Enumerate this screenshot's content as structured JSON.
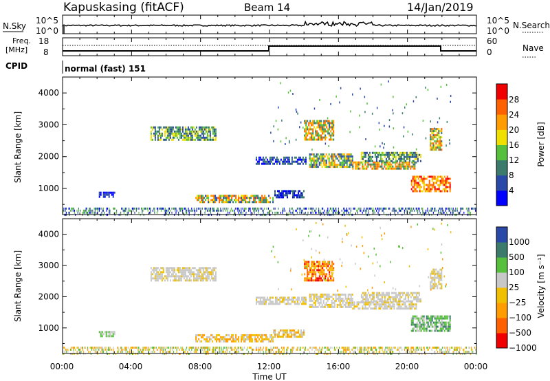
{
  "header": {
    "station": "Kapuskasing (fitACF)",
    "beam": "Beam 14",
    "date": "14/Jan/2019"
  },
  "noise_panel": {
    "left_label": "N.Sky",
    "left_ticks": [
      "10^5",
      "10^0"
    ],
    "right_ticks": [
      "10^5",
      "10^0"
    ],
    "right_label": "N.Search"
  },
  "freq_panel": {
    "left_label_line1": "Freq.",
    "left_label_line2": "[MHz]",
    "left_ticks": [
      "18",
      "8"
    ],
    "right_ticks": [
      "60",
      "0"
    ],
    "right_label": "Nave"
  },
  "cpid": {
    "label": "CPID",
    "value": "normal (fast) 151"
  },
  "x_axis": {
    "label": "Time UT",
    "ticks": [
      "00:00",
      "04:00",
      "08:00",
      "12:00",
      "16:00",
      "20:00",
      "00:00"
    ]
  },
  "colors": {
    "power_scale": [
      "#0000ff",
      "#2a48a8",
      "#3c7a6c",
      "#56c03c",
      "#f0e000",
      "#ff9c00",
      "#ff6000",
      "#f00000"
    ],
    "velocity_scale": [
      "#2a48a8",
      "#3c7a6c",
      "#56c03c",
      "#c8c8c8",
      "#f0c000",
      "#ff9c00",
      "#ff6000",
      "#f00000"
    ]
  },
  "power_colorbar": {
    "label": "Power [dB]",
    "ticks": [
      "28",
      "24",
      "20",
      "16",
      "12",
      "8",
      "4"
    ]
  },
  "velocity_colorbar": {
    "label": "Velocity [m s⁻¹]",
    "ticks": [
      "1000",
      "500",
      "100",
      "25",
      "−25",
      "−100",
      "−500",
      "−1000"
    ]
  },
  "chart_data": [
    {
      "type": "heatmap",
      "name": "power",
      "xlabel": "Time UT",
      "ylabel": "Slant Range [km]",
      "xlim_hours": [
        0,
        24
      ],
      "ylim_km": [
        180,
        4500
      ],
      "y_ticks": [
        1000,
        2000,
        3000,
        4000
      ],
      "colorbar": "Power [dB]",
      "regions": [
        {
          "t": [
            5.1,
            8.9
          ],
          "r": [
            2500,
            2950
          ],
          "level": "8-16"
        },
        {
          "t": [
            2.1,
            3.0
          ],
          "r": [
            750,
            900
          ],
          "level": "4-8"
        },
        {
          "t": [
            7.7,
            12.2
          ],
          "r": [
            600,
            800
          ],
          "level": "8-24"
        },
        {
          "t": [
            12.2,
            14.0
          ],
          "r": [
            700,
            950
          ],
          "level": "4-12"
        },
        {
          "t": [
            11.2,
            14.1
          ],
          "r": [
            1750,
            2000
          ],
          "level": "4-12"
        },
        {
          "t": [
            14.0,
            15.7
          ],
          "r": [
            2550,
            3150
          ],
          "level": "12-24"
        },
        {
          "t": [
            14.3,
            16.8
          ],
          "r": [
            1700,
            2100
          ],
          "level": "8-20"
        },
        {
          "t": [
            16.8,
            20.5
          ],
          "r": [
            1600,
            1850
          ],
          "level": "12-24"
        },
        {
          "t": [
            17.3,
            20.8
          ],
          "r": [
            1850,
            2150
          ],
          "level": "8-16"
        },
        {
          "t": [
            20.2,
            22.5
          ],
          "r": [
            900,
            1400
          ],
          "level": "16-28"
        },
        {
          "t": [
            21.3,
            22.0
          ],
          "r": [
            2250,
            2900
          ],
          "level": "12-24"
        },
        {
          "t": [
            0.0,
            24.0
          ],
          "r": [
            180,
            400
          ],
          "level": "4-16"
        }
      ]
    },
    {
      "type": "heatmap",
      "name": "velocity",
      "xlabel": "Time UT",
      "ylabel": "Slant Range [km]",
      "xlim_hours": [
        0,
        24
      ],
      "ylim_km": [
        180,
        4500
      ],
      "y_ticks": [
        1000,
        2000,
        3000,
        4000
      ],
      "colorbar": "Velocity [m s⁻¹]",
      "regions": [
        {
          "t": [
            5.1,
            8.9
          ],
          "r": [
            2500,
            2950
          ],
          "level": "-25 to 25"
        },
        {
          "t": [
            2.1,
            3.0
          ],
          "r": [
            750,
            900
          ],
          "level": "25-100"
        },
        {
          "t": [
            7.7,
            12.2
          ],
          "r": [
            600,
            800
          ],
          "level": "-25 to -100"
        },
        {
          "t": [
            12.2,
            14.0
          ],
          "r": [
            700,
            950
          ],
          "level": "-25 to -100"
        },
        {
          "t": [
            11.2,
            14.1
          ],
          "r": [
            1750,
            2000
          ],
          "level": "-25 to 25"
        },
        {
          "t": [
            14.0,
            15.7
          ],
          "r": [
            2550,
            3150
          ],
          "level": "-100 to -500"
        },
        {
          "t": [
            14.3,
            16.8
          ],
          "r": [
            1700,
            2100
          ],
          "level": "-25 to 25"
        },
        {
          "t": [
            16.8,
            20.5
          ],
          "r": [
            1600,
            1850
          ],
          "level": "-25 to 25"
        },
        {
          "t": [
            17.3,
            20.8
          ],
          "r": [
            1850,
            2150
          ],
          "level": "-25 to 25"
        },
        {
          "t": [
            20.2,
            22.5
          ],
          "r": [
            900,
            1400
          ],
          "level": "100-500"
        },
        {
          "t": [
            21.3,
            22.0
          ],
          "r": [
            2250,
            2900
          ],
          "level": "-25 to 25"
        },
        {
          "t": [
            0.0,
            24.0
          ],
          "r": [
            180,
            400
          ],
          "level": "-25 to 100"
        }
      ]
    }
  ]
}
